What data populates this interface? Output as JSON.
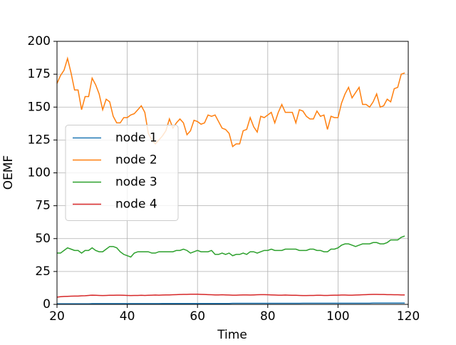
{
  "chart_data": {
    "type": "line",
    "xlabel": "Time",
    "ylabel": "OEMF",
    "x": [
      20,
      21,
      22,
      23,
      24,
      25,
      26,
      27,
      28,
      29,
      30,
      31,
      32,
      33,
      34,
      35,
      36,
      37,
      38,
      39,
      40,
      41,
      42,
      43,
      44,
      45,
      46,
      47,
      48,
      49,
      50,
      51,
      52,
      53,
      54,
      55,
      56,
      57,
      58,
      59,
      60,
      61,
      62,
      63,
      64,
      65,
      66,
      67,
      68,
      69,
      70,
      71,
      72,
      73,
      74,
      75,
      76,
      77,
      78,
      79,
      80,
      81,
      82,
      83,
      84,
      85,
      86,
      87,
      88,
      89,
      90,
      91,
      92,
      93,
      94,
      95,
      96,
      97,
      98,
      99,
      100,
      101,
      102,
      103,
      104,
      105,
      106,
      107,
      108,
      109,
      110,
      111,
      112,
      113,
      114,
      115,
      116,
      117,
      118,
      119
    ],
    "series": [
      {
        "name": "node 1",
        "color": "#1f77b4",
        "values": [
          0.5,
          0.5,
          0.5,
          0.5,
          0.5,
          0.5,
          0.5,
          0.5,
          0.5,
          0.5,
          0.6,
          0.6,
          0.6,
          0.6,
          0.6,
          0.6,
          0.6,
          0.6,
          0.6,
          0.6,
          0.6,
          0.6,
          0.6,
          0.6,
          0.6,
          0.6,
          0.6,
          0.6,
          0.6,
          0.6,
          0.7,
          0.7,
          0.7,
          0.7,
          0.7,
          0.7,
          0.7,
          0.7,
          0.7,
          0.7,
          0.7,
          0.7,
          0.7,
          0.7,
          0.7,
          0.7,
          0.7,
          0.7,
          0.7,
          0.7,
          0.8,
          0.8,
          0.8,
          0.8,
          0.8,
          0.8,
          0.8,
          0.8,
          0.8,
          0.8,
          0.8,
          0.8,
          0.8,
          0.8,
          0.8,
          0.8,
          0.8,
          0.8,
          0.8,
          0.8,
          0.9,
          0.9,
          0.9,
          0.9,
          0.9,
          0.9,
          0.9,
          0.9,
          0.9,
          0.9,
          0.9,
          0.9,
          0.9,
          0.9,
          0.9,
          0.9,
          0.9,
          0.9,
          0.9,
          0.9,
          1.0,
          1.0,
          1.0,
          1.0,
          1.0,
          1.0,
          1.0,
          1.0,
          1.0,
          1.0
        ]
      },
      {
        "name": "node 2",
        "color": "#ff7f0e",
        "values": [
          168,
          174,
          178,
          187,
          176,
          163,
          163,
          148,
          158,
          158,
          172,
          167,
          160,
          148,
          156,
          154,
          143,
          138,
          138,
          142,
          142,
          144,
          145,
          148,
          151,
          146,
          130,
          125,
          122,
          125,
          128,
          132,
          141,
          134,
          138,
          141,
          138,
          129,
          132,
          140,
          139,
          137,
          138,
          144,
          143,
          144,
          139,
          134,
          133,
          130,
          120,
          122,
          122,
          132,
          133,
          142,
          135,
          131,
          143,
          142,
          144,
          146,
          138,
          146,
          152,
          146,
          146,
          146,
          138,
          148,
          147,
          143,
          141,
          141,
          147,
          143,
          144,
          133,
          143,
          142,
          142,
          153,
          160,
          165,
          157,
          161,
          165,
          152,
          152,
          150,
          154,
          160,
          150,
          151,
          156,
          154,
          164,
          165,
          175,
          176
        ]
      },
      {
        "name": "node 3",
        "color": "#2ca02c",
        "values": [
          39,
          39,
          41,
          43,
          42,
          41,
          41,
          39,
          41,
          41,
          43,
          41,
          40,
          40,
          42,
          44,
          44,
          43,
          40,
          38,
          37,
          36,
          39,
          40,
          40,
          40,
          40,
          39,
          39,
          40,
          40,
          40,
          40,
          40,
          41,
          41,
          42,
          41,
          39,
          40,
          41,
          40,
          40,
          40,
          41,
          38,
          38,
          39,
          38,
          39,
          37,
          38,
          38,
          39,
          38,
          40,
          40,
          39,
          40,
          41,
          41,
          42,
          41,
          41,
          41,
          42,
          42,
          42,
          42,
          41,
          41,
          41,
          42,
          42,
          41,
          41,
          40,
          40,
          42,
          42,
          43,
          45,
          46,
          46,
          45,
          44,
          45,
          46,
          46,
          46,
          47,
          47,
          46,
          46,
          47,
          49,
          49,
          49,
          51,
          52
        ]
      },
      {
        "name": "node 4",
        "color": "#d62728",
        "values": [
          5.5,
          5.8,
          6.0,
          6.1,
          6.2,
          6.3,
          6.3,
          6.5,
          6.6,
          6.8,
          7.0,
          6.9,
          6.8,
          6.7,
          6.8,
          6.9,
          6.9,
          7.0,
          7.0,
          6.9,
          6.8,
          6.7,
          6.8,
          6.8,
          6.9,
          6.8,
          6.9,
          7.0,
          7.1,
          7.0,
          7.1,
          7.2,
          7.2,
          7.3,
          7.4,
          7.5,
          7.6,
          7.6,
          7.7,
          7.7,
          7.7,
          7.6,
          7.5,
          7.4,
          7.3,
          7.2,
          7.2,
          7.3,
          7.2,
          7.1,
          7.0,
          7.0,
          7.1,
          7.2,
          7.2,
          7.1,
          7.2,
          7.3,
          7.4,
          7.4,
          7.3,
          7.2,
          7.1,
          7.0,
          7.0,
          7.1,
          7.0,
          6.9,
          6.9,
          6.8,
          6.7,
          6.7,
          6.8,
          6.8,
          6.9,
          6.9,
          6.8,
          6.8,
          6.9,
          7.0,
          7.0,
          7.1,
          7.1,
          7.0,
          7.0,
          7.1,
          7.2,
          7.3,
          7.4,
          7.5,
          7.6,
          7.6,
          7.5,
          7.5,
          7.4,
          7.4,
          7.3,
          7.3,
          7.2,
          7.2
        ]
      }
    ],
    "xlim": [
      20,
      120
    ],
    "xticks": [
      20,
      40,
      60,
      80,
      100,
      120
    ],
    "ylim": [
      0,
      200
    ],
    "yticks": [
      0,
      25,
      50,
      75,
      100,
      125,
      150,
      175,
      200
    ],
    "grid": true,
    "legend": "center left"
  }
}
